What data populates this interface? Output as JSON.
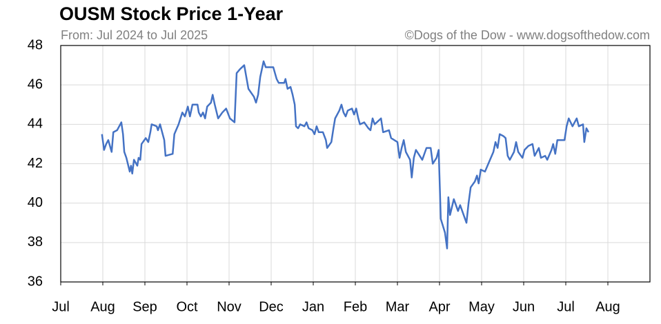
{
  "chart_data": {
    "type": "line",
    "title": "OUSM Stock Price 1-Year",
    "subtitle": "From: Jul 2024 to Jul 2025",
    "credit": "©Dogs of the Dow - www.dogsofthedow.com",
    "xlim": [
      0,
      14
    ],
    "xticks": [
      {
        "value": 0,
        "label": "Jul"
      },
      {
        "value": 1,
        "label": "Aug"
      },
      {
        "value": 2,
        "label": "Sep"
      },
      {
        "value": 3,
        "label": "Oct"
      },
      {
        "value": 4,
        "label": "Nov"
      },
      {
        "value": 5,
        "label": "Dec"
      },
      {
        "value": 6,
        "label": "Jan"
      },
      {
        "value": 7,
        "label": "Feb"
      },
      {
        "value": 8,
        "label": "Mar"
      },
      {
        "value": 9,
        "label": "Apr"
      },
      {
        "value": 10,
        "label": "May"
      },
      {
        "value": 11,
        "label": "Jun"
      },
      {
        "value": 12,
        "label": "Jul"
      },
      {
        "value": 13,
        "label": "Aug"
      }
    ],
    "ylim": [
      36,
      48
    ],
    "yticks": [
      36,
      38,
      40,
      42,
      44,
      46,
      48
    ],
    "grid": true,
    "series": [
      {
        "name": "OUSM",
        "color": "#4472c4",
        "x": [
          0.98,
          1.03,
          1.08,
          1.13,
          1.21,
          1.25,
          1.34,
          1.44,
          1.48,
          1.51,
          1.56,
          1.64,
          1.67,
          1.7,
          1.74,
          1.82,
          1.85,
          1.89,
          1.92,
          2.02,
          2.08,
          2.13,
          2.16,
          2.28,
          2.31,
          2.36,
          2.41,
          2.46,
          2.49,
          2.66,
          2.7,
          2.8,
          2.89,
          2.95,
          3.02,
          3.07,
          3.13,
          3.25,
          3.28,
          3.33,
          3.38,
          3.43,
          3.48,
          3.57,
          3.61,
          3.66,
          3.74,
          3.84,
          3.93,
          4.02,
          4.13,
          4.18,
          4.26,
          4.36,
          4.41,
          4.46,
          4.59,
          4.64,
          4.69,
          4.74,
          4.82,
          4.87,
          5.05,
          5.13,
          5.18,
          5.31,
          5.34,
          5.39,
          5.46,
          5.51,
          5.56,
          5.59,
          5.64,
          5.69,
          5.79,
          5.84,
          5.89,
          5.98,
          6.03,
          6.08,
          6.13,
          6.23,
          6.3,
          6.33,
          6.43,
          6.48,
          6.52,
          6.62,
          6.67,
          6.72,
          6.77,
          6.82,
          6.92,
          6.97,
          7.02,
          7.07,
          7.11,
          7.21,
          7.31,
          7.36,
          7.41,
          7.46,
          7.61,
          7.66,
          7.8,
          7.85,
          8.0,
          8.05,
          8.1,
          8.15,
          8.2,
          8.3,
          8.34,
          8.39,
          8.44,
          8.59,
          8.69,
          8.79,
          8.84,
          8.93,
          8.98,
          9.03,
          9.13,
          9.18,
          9.21,
          9.25,
          9.34,
          9.44,
          9.49,
          9.64,
          9.69,
          9.74,
          9.84,
          9.89,
          9.93,
          9.98,
          10.08,
          10.18,
          10.28,
          10.33,
          10.38,
          10.43,
          10.52,
          10.57,
          10.62,
          10.67,
          10.77,
          10.82,
          10.87,
          10.97,
          11.02,
          11.11,
          11.21,
          11.26,
          11.36,
          11.41,
          11.51,
          11.56,
          11.66,
          11.7,
          11.75,
          11.8,
          11.97,
          12.02,
          12.07,
          12.16,
          12.26,
          12.31,
          12.41,
          12.44,
          12.49,
          12.54
        ],
        "values": [
          43.5,
          42.7,
          43.0,
          43.2,
          42.6,
          43.6,
          43.7,
          44.1,
          43.5,
          42.6,
          42.3,
          41.6,
          41.9,
          41.5,
          42.2,
          41.9,
          42.3,
          42.2,
          43.0,
          43.3,
          43.1,
          43.6,
          44.0,
          43.9,
          43.7,
          44.0,
          43.6,
          43.2,
          42.4,
          42.5,
          43.5,
          44.0,
          44.6,
          44.4,
          44.9,
          44.4,
          45.0,
          45.0,
          44.6,
          44.4,
          44.6,
          44.3,
          44.9,
          45.1,
          45.5,
          45.0,
          44.3,
          44.6,
          44.8,
          44.3,
          44.1,
          46.6,
          46.8,
          47.0,
          46.4,
          45.8,
          45.4,
          45.1,
          45.5,
          46.4,
          47.2,
          46.9,
          46.9,
          46.3,
          46.1,
          46.1,
          46.3,
          45.8,
          45.9,
          45.5,
          45.0,
          43.9,
          43.8,
          44.0,
          43.9,
          44.1,
          43.8,
          43.7,
          43.5,
          43.9,
          43.6,
          43.6,
          43.2,
          42.8,
          43.1,
          43.8,
          44.3,
          44.7,
          45.0,
          44.6,
          44.4,
          44.7,
          44.8,
          44.5,
          44.8,
          44.3,
          44.0,
          44.1,
          43.8,
          43.7,
          44.3,
          44.0,
          44.3,
          43.6,
          43.7,
          43.3,
          43.1,
          42.3,
          42.8,
          43.2,
          42.6,
          42.2,
          41.3,
          42.3,
          42.7,
          42.2,
          42.8,
          42.8,
          42.0,
          42.3,
          42.7,
          39.2,
          38.5,
          37.7,
          40.3,
          39.4,
          40.2,
          39.6,
          39.9,
          39.0,
          40.0,
          40.8,
          41.1,
          41.4,
          41.0,
          41.7,
          41.6,
          42.1,
          42.6,
          43.1,
          42.8,
          43.5,
          43.4,
          43.3,
          42.4,
          42.2,
          42.6,
          43.1,
          42.6,
          42.3,
          42.7,
          42.9,
          43.0,
          42.4,
          42.8,
          42.3,
          42.4,
          42.2,
          42.7,
          43.0,
          42.5,
          43.2,
          43.2,
          43.9,
          44.3,
          43.9,
          44.3,
          43.9,
          44.0,
          43.1,
          43.8,
          43.6
        ]
      }
    ]
  }
}
